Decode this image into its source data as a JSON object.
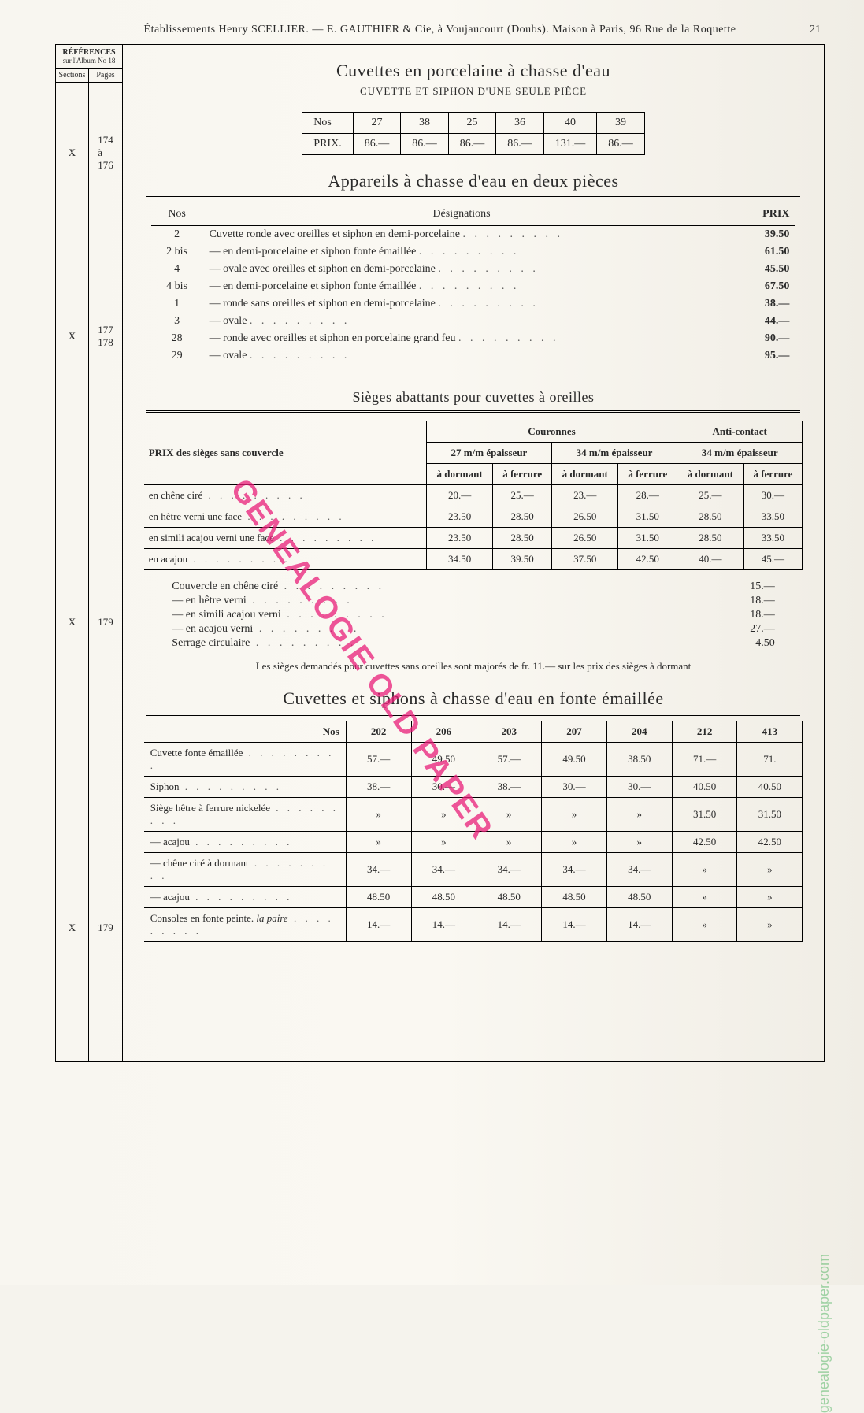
{
  "header": {
    "line": "Établissements Henry SCELLIER. — E. GAUTHIER & Cie, à Voujaucourt (Doubs). Maison à Paris, 96 Rue de la Roquette",
    "page_number": "21"
  },
  "references": {
    "title": "RÉFÉRENCES",
    "subtitle": "sur l'Album No 18",
    "col_sections": "Sections",
    "col_pages": "Pages",
    "entries": [
      {
        "section": "X",
        "pages": "174\nà\n176"
      },
      {
        "section": "X",
        "pages": "177\n178"
      },
      {
        "section": "X",
        "pages": "179"
      },
      {
        "section": "X",
        "pages": "179"
      }
    ]
  },
  "section1": {
    "title": "Cuvettes en porcelaine à chasse d'eau",
    "subtitle": "CUVETTE ET SIPHON D'UNE SEULE PIÈCE",
    "nos_label": "Nos",
    "prix_label": "PRIX.",
    "numbers": [
      "27",
      "38",
      "25",
      "36",
      "40",
      "39"
    ],
    "prices": [
      "86.—",
      "86.—",
      "86.—",
      "86.—",
      "131.—",
      "86.—"
    ]
  },
  "section2": {
    "title": "Appareils à chasse d'eau en deux pièces",
    "col_nos": "Nos",
    "col_desig": "Désignations",
    "col_prix": "PRIX",
    "rows": [
      {
        "n": "2",
        "d": "Cuvette ronde avec oreilles et siphon en demi-porcelaine",
        "p": "39.50"
      },
      {
        "n": "2 bis",
        "d": "— en demi-porcelaine et siphon fonte émaillée",
        "p": "61.50"
      },
      {
        "n": "4",
        "d": "— ovale avec oreilles et siphon en demi-porcelaine",
        "p": "45.50"
      },
      {
        "n": "4 bis",
        "d": "— en demi-porcelaine et siphon fonte émaillée",
        "p": "67.50"
      },
      {
        "n": "1",
        "d": "— ronde sans oreilles et siphon en demi-porcelaine",
        "p": "38.—"
      },
      {
        "n": "3",
        "d": "— ovale",
        "p": "44.—"
      },
      {
        "n": "28",
        "d": "— ronde avec oreilles et siphon en porcelaine grand feu",
        "p": "90.—"
      },
      {
        "n": "29",
        "d": "— ovale",
        "p": "95.—"
      }
    ]
  },
  "section3": {
    "title": "Sièges abattants pour cuvettes à oreilles",
    "prix_label": "PRIX des sièges sans couvercle",
    "group_couronnes": "Couronnes",
    "group_anti": "Anti-contact",
    "ep27": "27 m/m épaisseur",
    "ep34": "34 m/m épaisseur",
    "ep34b": "34 m/m épaisseur",
    "dormant": "à dormant",
    "ferrure": "à ferrure",
    "materials": [
      {
        "name": "en chêne ciré",
        "v": [
          "20.—",
          "25.—",
          "23.—",
          "28.—",
          "25.—",
          "30.—"
        ]
      },
      {
        "name": "en hêtre verni une face",
        "v": [
          "23.50",
          "28.50",
          "26.50",
          "31.50",
          "28.50",
          "33.50"
        ]
      },
      {
        "name": "en simili acajou verni une face",
        "v": [
          "23.50",
          "28.50",
          "26.50",
          "31.50",
          "28.50",
          "33.50"
        ]
      },
      {
        "name": "en acajou",
        "v": [
          "34.50",
          "39.50",
          "37.50",
          "42.50",
          "40.—",
          "45.—"
        ]
      }
    ],
    "couvercles": [
      {
        "name": "Couvercle en chêne ciré",
        "p": "15.—"
      },
      {
        "name": "— en hêtre verni",
        "p": "18.—"
      },
      {
        "name": "— en simili acajou verni",
        "p": "18.—"
      },
      {
        "name": "— en acajou verni",
        "p": "27.—"
      },
      {
        "name": "Serrage circulaire",
        "p": "4.50"
      }
    ],
    "note": "Les sièges demandés pour cuvettes sans oreilles sont majorés de fr. 11.— sur les prix des sièges à dormant"
  },
  "section4": {
    "title": "Cuvettes et siphons à chasse d'eau en fonte émaillée",
    "nos_label": "Nos",
    "numbers": [
      "202",
      "206",
      "203",
      "207",
      "204",
      "212",
      "413"
    ],
    "rows": [
      {
        "name": "Cuvette fonte émaillée",
        "v": [
          "57.—",
          "49.50",
          "57.—",
          "49.50",
          "38.50",
          "71.—",
          "71."
        ]
      },
      {
        "name": "Siphon",
        "v": [
          "38.—",
          "30.—",
          "38.—",
          "30.—",
          "30.—",
          "40.50",
          "40.50"
        ]
      },
      {
        "name": "Siège hêtre à ferrure nickelée",
        "v": [
          "»",
          "»",
          "»",
          "»",
          "»",
          "31.50",
          "31.50"
        ]
      },
      {
        "name": "— acajou",
        "v": [
          "»",
          "»",
          "»",
          "»",
          "»",
          "42.50",
          "42.50"
        ]
      },
      {
        "name": "— chêne ciré à dormant",
        "v": [
          "34.—",
          "34.—",
          "34.—",
          "34.—",
          "34.—",
          "»",
          "»"
        ]
      },
      {
        "name": "— acajou",
        "v": [
          "48.50",
          "48.50",
          "48.50",
          "48.50",
          "48.50",
          "»",
          "»"
        ]
      },
      {
        "name_extra": "la paire",
        "name": "Consoles en fonte peinte.",
        "v": [
          "14.—",
          "14.—",
          "14.—",
          "14.—",
          "14.—",
          "»",
          "»"
        ]
      }
    ]
  },
  "watermark": {
    "text": "GENEALOGIE OLD PAPER",
    "url": "genealogie-oldpaper.com"
  },
  "style": {
    "bg": "#f8f6f0",
    "ink": "#2a2a2a",
    "wm_color": "#e81e78",
    "title_fontsize": 22,
    "body_fontsize": 14,
    "small_fontsize": 13
  }
}
